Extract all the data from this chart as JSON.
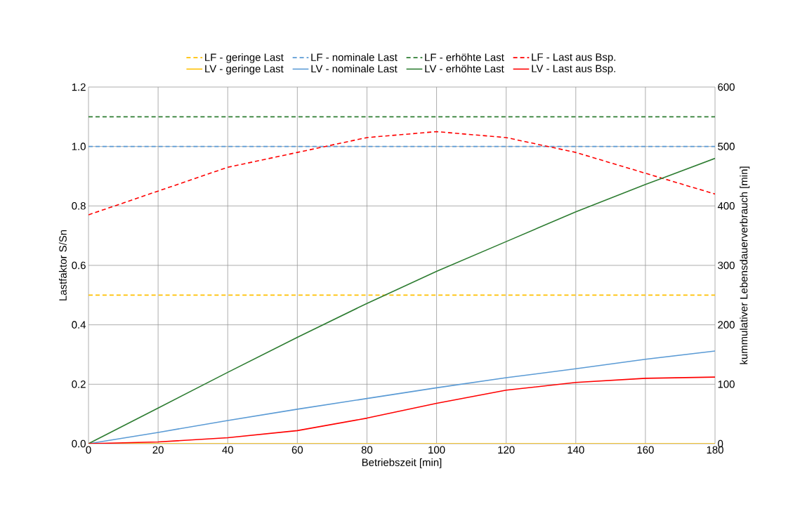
{
  "chart_data": {
    "type": "line",
    "xlabel": "Betriebszeit [min]",
    "ylabel": "Lastfaktor S/Sn",
    "y2label": "kummulativer Lebensdauerverbrauch [min]",
    "x": [
      0,
      20,
      40,
      60,
      80,
      100,
      120,
      140,
      160,
      180
    ],
    "xlim": [
      0,
      180
    ],
    "xticks": [
      0,
      20,
      40,
      60,
      80,
      100,
      120,
      140,
      160,
      180
    ],
    "ylim": [
      0,
      1.2
    ],
    "yticks": [
      {
        "value": 0,
        "label": "0.0"
      },
      {
        "value": 0.2,
        "label": "0.2"
      },
      {
        "value": 0.4,
        "label": "0.4"
      },
      {
        "value": 0.6,
        "label": "0.6"
      },
      {
        "value": 0.8,
        "label": "0.8"
      },
      {
        "value": 1.0,
        "label": "1.0"
      },
      {
        "value": 1.2,
        "label": "1.2"
      }
    ],
    "y2lim": [
      0,
      600
    ],
    "y2ticks": [
      0,
      100,
      200,
      300,
      400,
      500,
      600
    ],
    "grid": true,
    "legend": "top",
    "marker": "none",
    "series": [
      {
        "name": "LF - geringe Last",
        "color": "#ffc000",
        "line_style": "dashed",
        "values": [
          0.5,
          0.5,
          0.5,
          0.5,
          0.5,
          0.5,
          0.5,
          0.5,
          0.5,
          0.5
        ]
      },
      {
        "name": "LF - nominale Last",
        "color": "#5b9bd5",
        "line_style": "dashed",
        "values": [
          1.0,
          1.0,
          1.0,
          1.0,
          1.0,
          1.0,
          1.0,
          1.0,
          1.0,
          1.0
        ]
      },
      {
        "name": "LF - erhöhte Last",
        "color": "#2e7d32",
        "line_style": "dashed",
        "values": [
          1.1,
          1.1,
          1.1,
          1.1,
          1.1,
          1.1,
          1.1,
          1.1,
          1.1,
          1.1
        ]
      },
      {
        "name": "LF - Last aus Bsp.",
        "color": "#ff0000",
        "line_style": "dashed",
        "values": [
          0.77,
          0.85,
          0.93,
          0.98,
          1.03,
          1.05,
          1.03,
          0.98,
          0.91,
          0.84
        ]
      },
      {
        "name": "LV - geringe Last",
        "color": "#ffc000",
        "line_style": "solid",
        "axis": "y2",
        "values": [
          0,
          0,
          0,
          0,
          0,
          0,
          0,
          0,
          0,
          0
        ]
      },
      {
        "name": "LV - nominale Last",
        "color": "#5b9bd5",
        "line_style": "solid",
        "axis": "y2",
        "values": [
          0,
          19,
          39,
          58,
          76,
          94,
          111,
          126,
          142,
          156
        ]
      },
      {
        "name": "LV - erhöhte Last",
        "color": "#2e7d32",
        "line_style": "solid",
        "axis": "y2",
        "values": [
          0,
          60,
          120,
          179,
          236,
          290,
          340,
          390,
          436,
          480
        ]
      },
      {
        "name": "LV - Last aus Bsp.",
        "color": "#ff0000",
        "line_style": "solid",
        "axis": "y2",
        "values": [
          0,
          3,
          10,
          22,
          43,
          68,
          90,
          103,
          110,
          112
        ]
      }
    ]
  }
}
